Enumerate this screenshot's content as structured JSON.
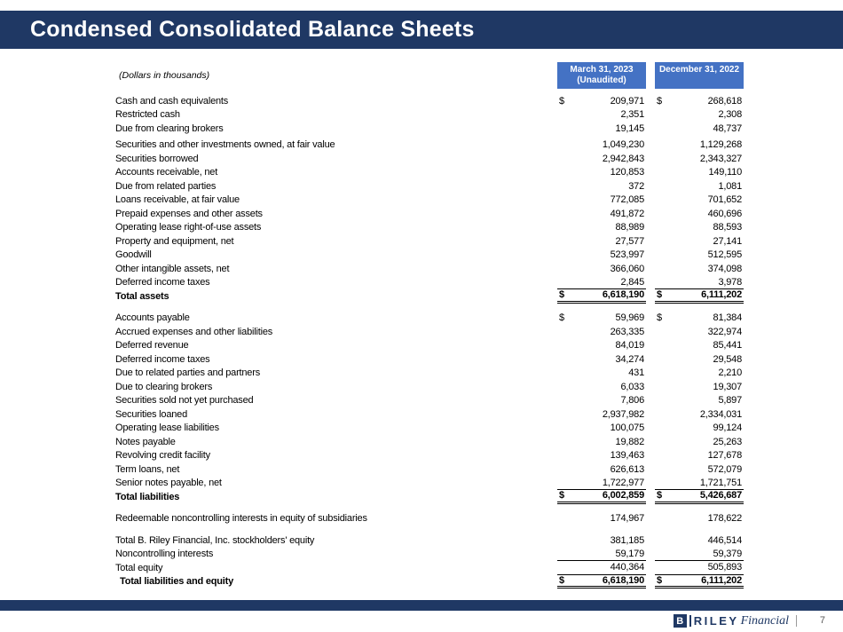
{
  "title": "Condensed Consolidated Balance Sheets",
  "currency": "$",
  "colors": {
    "navy": "#1f3864",
    "header_blue": "#4472c4",
    "text": "#000000"
  },
  "table": {
    "units_label": "(Dollars in thousands)",
    "columns": [
      {
        "line1": "March 31, 2023",
        "line2": "(Unaudited)"
      },
      {
        "line1": "December 31, 2022",
        "line2": ""
      }
    ],
    "sections": [
      {
        "rows": [
          {
            "label": "Cash and cash equivalents",
            "dollar": true,
            "v1": "209,971",
            "v2": "268,618"
          },
          {
            "label": "Restricted cash",
            "v1": "2,351",
            "v2": "2,308"
          },
          {
            "label": "Due from clearing brokers",
            "v1": "19,145",
            "v2": "48,737"
          }
        ]
      },
      {
        "rows": [
          {
            "label": "Securities and other investments owned, at fair value",
            "v1": "1,049,230",
            "v2": "1,129,268"
          },
          {
            "label": "Securities borrowed",
            "v1": "2,942,843",
            "v2": "2,343,327"
          },
          {
            "label": "Accounts receivable, net",
            "v1": "120,853",
            "v2": "149,110"
          },
          {
            "label": "Due from related parties",
            "v1": "372",
            "v2": "1,081"
          },
          {
            "label": "Loans receivable, at fair value",
            "v1": "772,085",
            "v2": "701,652"
          },
          {
            "label": "Prepaid expenses and other assets",
            "v1": "491,872",
            "v2": "460,696"
          },
          {
            "label": "Operating lease right-of-use assets",
            "v1": "88,989",
            "v2": "88,593"
          },
          {
            "label": "Property and equipment, net",
            "v1": "27,577",
            "v2": "27,141"
          },
          {
            "label": "Goodwill",
            "v1": "523,997",
            "v2": "512,595"
          },
          {
            "label": "Other intangible assets, net",
            "v1": "366,060",
            "v2": "374,098"
          },
          {
            "label": "Deferred income taxes",
            "v1": "2,845",
            "v2": "3,978",
            "rule": "single"
          },
          {
            "label": "Total assets",
            "bold": true,
            "dollar": true,
            "v1": "6,618,190",
            "v2": "6,111,202",
            "rule": "double"
          }
        ]
      },
      {
        "rows": [
          {
            "label": "Accounts payable",
            "dollar": true,
            "v1": "59,969",
            "v2": "81,384"
          },
          {
            "label": "Accrued expenses and other liabilities",
            "v1": "263,335",
            "v2": "322,974"
          },
          {
            "label": "Deferred revenue",
            "v1": "84,019",
            "v2": "85,441"
          },
          {
            "label": "Deferred income taxes",
            "v1": "34,274",
            "v2": "29,548"
          },
          {
            "label": "Due to related parties and partners",
            "v1": "431",
            "v2": "2,210"
          },
          {
            "label": "Due to clearing brokers",
            "v1": "6,033",
            "v2": "19,307"
          },
          {
            "label": "Securities sold not yet purchased",
            "v1": "7,806",
            "v2": "5,897"
          },
          {
            "label": "Securities loaned",
            "v1": "2,937,982",
            "v2": "2,334,031"
          },
          {
            "label": "Operating lease liabilities",
            "v1": "100,075",
            "v2": "99,124"
          },
          {
            "label": "Notes payable",
            "v1": "19,882",
            "v2": "25,263"
          },
          {
            "label": "Revolving credit facility",
            "v1": "139,463",
            "v2": "127,678"
          },
          {
            "label": "Term loans, net",
            "v1": "626,613",
            "v2": "572,079"
          },
          {
            "label": "Senior notes payable, net",
            "v1": "1,722,977",
            "v2": "1,721,751",
            "rule": "single"
          },
          {
            "label": "Total liabilities",
            "bold": true,
            "dollar": true,
            "v1": "6,002,859",
            "v2": "5,426,687",
            "rule": "double"
          }
        ]
      },
      {
        "rows": [
          {
            "label": "Redeemable noncontrolling interests in equity of subsidiaries",
            "v1": "174,967",
            "v2": "178,622"
          }
        ]
      },
      {
        "rows": [
          {
            "label": "Total B. Riley Financial, Inc. stockholders' equity",
            "v1": "381,185",
            "v2": "446,514"
          },
          {
            "label": "Noncontrolling interests",
            "v1": "59,179",
            "v2": "59,379",
            "rule": "single"
          },
          {
            "label": "Total equity",
            "v1": "440,364",
            "v2": "505,893",
            "rule": "single"
          },
          {
            "label": "Total liabilities and equity",
            "bold": true,
            "dollar": true,
            "indent": true,
            "v1": "6,618,190",
            "v2": "6,111,202",
            "rule": "double"
          }
        ]
      }
    ]
  },
  "footer": {
    "logo_b": "B",
    "logo_riley": "RILEY",
    "logo_financial": "Financial",
    "page_number": "7"
  }
}
